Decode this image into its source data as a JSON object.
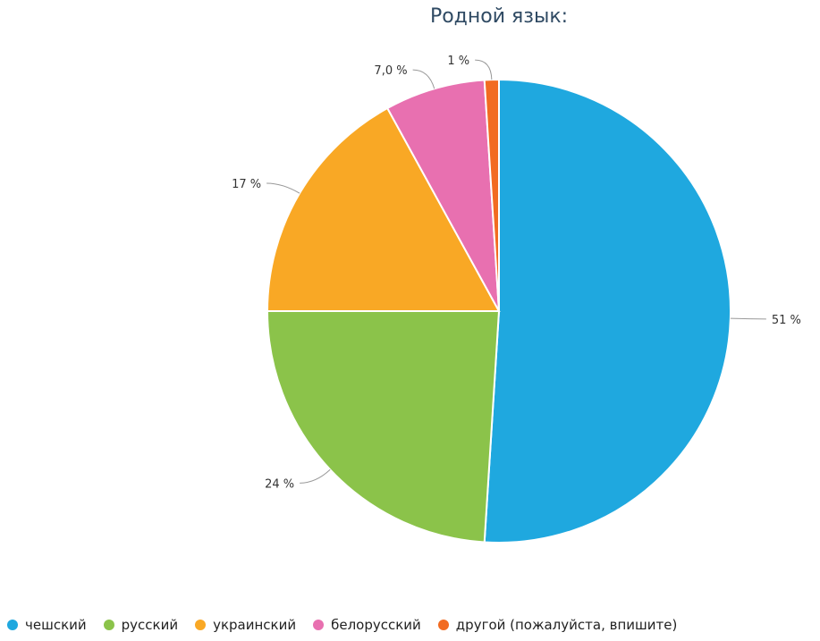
{
  "chart_data": {
    "type": "pie",
    "title": "Родной язык:",
    "categories": [
      "чешский",
      "русский",
      "украинский",
      "белорусский",
      "другой (пожалуйста, впишите)"
    ],
    "values": [
      51,
      24,
      17,
      7.0,
      1
    ],
    "value_labels": [
      "51 %",
      "24 %",
      "17 %",
      "7,0 %",
      "1 %"
    ],
    "colors": [
      "#1fa8df",
      "#8bc34a",
      "#f9a825",
      "#e870b0",
      "#f26b21"
    ],
    "legend_position": "bottom"
  }
}
